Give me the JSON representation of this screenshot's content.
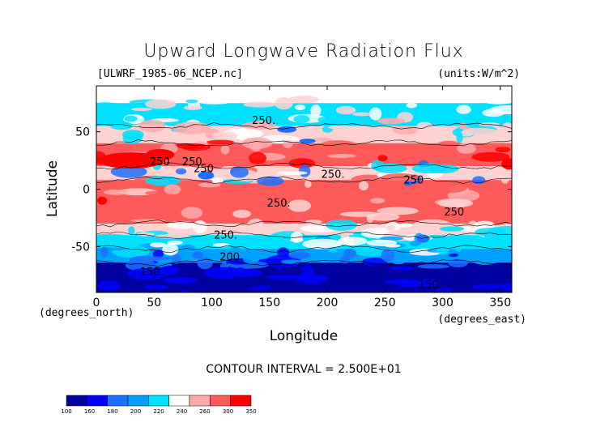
{
  "chart_data": {
    "type": "heatmap",
    "title": "Upward Longwave Radiation Flux",
    "file_label": "[ULWRF_1985-06_NCEP.nc]",
    "units_label": "(units:W/m^2)",
    "xlabel": "Longitude",
    "ylabel": "Latitude",
    "x_unit_label": "(degrees_east)",
    "y_unit_label": "(degrees_north)",
    "xlim": [
      0,
      360
    ],
    "ylim": [
      -90,
      90
    ],
    "x_ticks": [
      0,
      50,
      100,
      150,
      200,
      250,
      300,
      350
    ],
    "y_ticks": [
      50,
      0,
      -50
    ],
    "contour_interval_text": "CONTOUR INTERVAL = 2.500E+01",
    "contour_labels": [
      {
        "text": "250",
        "lon": 55,
        "lat": 21
      },
      {
        "text": "250",
        "lon": 83,
        "lat": 21
      },
      {
        "text": "250",
        "lon": 93,
        "lat": 15
      },
      {
        "text": "250.",
        "lon": 145,
        "lat": 57
      },
      {
        "text": "250.",
        "lon": 205,
        "lat": 10
      },
      {
        "text": "250.",
        "lon": 158,
        "lat": -15
      },
      {
        "text": "250.",
        "lon": 112,
        "lat": -43
      },
      {
        "text": "200.",
        "lon": 117,
        "lat": -62
      },
      {
        "text": "150.",
        "lon": 48,
        "lat": -75
      },
      {
        "text": "250",
        "lon": 275,
        "lat": 5
      },
      {
        "text": "250",
        "lon": 310,
        "lat": -23
      },
      {
        "text": "150",
        "lon": 288,
        "lat": -86
      }
    ],
    "colorbar": {
      "levels": [
        "100",
        "160",
        "180",
        "200",
        "220",
        "240",
        "260",
        "300",
        "350"
      ],
      "colors": [
        "#0000a0",
        "#0000ff",
        "#1e6eff",
        "#00a0ff",
        "#00e0ff",
        "#ffffff",
        "#ffaaaa",
        "#ff5a5a",
        "#ff0000"
      ]
    },
    "zonal_bands": [
      {
        "lat_from": 90,
        "lat_to": 75,
        "band": "white"
      },
      {
        "lat_from": 75,
        "lat_to": 55,
        "band": "cyan"
      },
      {
        "lat_from": 55,
        "lat_to": 40,
        "band": "pink"
      },
      {
        "lat_from": 40,
        "lat_to": 20,
        "band": "red"
      },
      {
        "lat_from": 20,
        "lat_to": 8,
        "band": "mixed"
      },
      {
        "lat_from": 8,
        "lat_to": -30,
        "band": "red"
      },
      {
        "lat_from": -30,
        "lat_to": -40,
        "band": "pink"
      },
      {
        "lat_from": -40,
        "lat_to": -52,
        "band": "cyan"
      },
      {
        "lat_from": -52,
        "lat_to": -64,
        "band": "blue"
      },
      {
        "lat_from": -64,
        "lat_to": -90,
        "band": "darkblue"
      }
    ]
  }
}
